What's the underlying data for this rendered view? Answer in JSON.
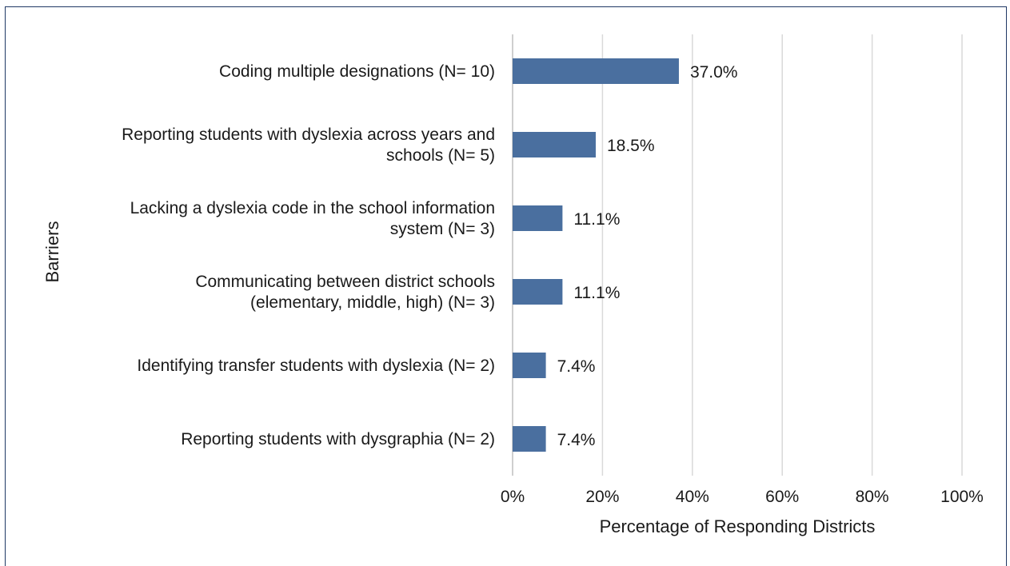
{
  "chart_data": {
    "type": "bar",
    "orientation": "horizontal",
    "xlabel": "Percentage of Responding Districts",
    "ylabel": "Barriers",
    "xlim": [
      0,
      100
    ],
    "xticks": [
      "0%",
      "20%",
      "40%",
      "60%",
      "80%",
      "100%"
    ],
    "grid": "vertical",
    "categories": [
      [
        "Coding multiple designations (N= 10)"
      ],
      [
        "Reporting students with dyslexia across years and",
        "schools (N= 5)"
      ],
      [
        "Lacking a dyslexia code in the school information",
        "system (N= 3)"
      ],
      [
        "Communicating between district schools",
        "(elementary, middle, high) (N= 3)"
      ],
      [
        "Identifying transfer students with dyslexia (N= 2)"
      ],
      [
        "Reporting students with dysgraphia (N= 2)"
      ]
    ],
    "values": [
      37.0,
      18.5,
      11.1,
      11.1,
      7.4,
      7.4
    ],
    "value_labels": [
      "37.0%",
      "18.5%",
      "11.1%",
      "11.1%",
      "7.4%",
      "7.4%"
    ],
    "bar_color": "#4a6f9f",
    "grid_color": "#d9d9d9",
    "frame_color": "#1f3864"
  }
}
